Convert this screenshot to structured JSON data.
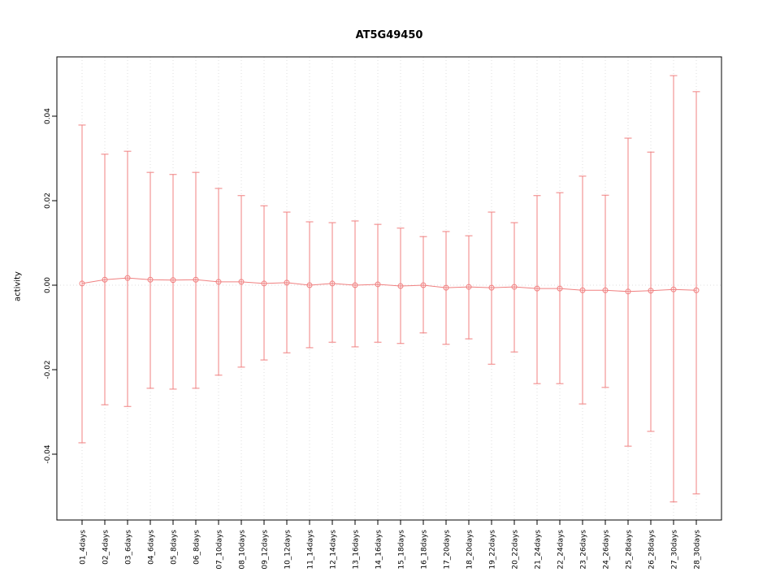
{
  "chart_data": {
    "type": "errorbar-line",
    "title": "AT5G49450",
    "xlabel": "",
    "ylabel": "activity",
    "categories": [
      "01_4days",
      "02_4days",
      "03_6days",
      "04_6days",
      "05_8days",
      "06_8days",
      "07_10days",
      "08_10days",
      "09_12days",
      "10_12days",
      "11_14days",
      "12_14days",
      "13_16days",
      "14_16days",
      "15_18days",
      "16_18days",
      "17_20days",
      "18_20days",
      "19_22days",
      "20_22days",
      "21_24days",
      "22_24days",
      "23_26days",
      "24_26days",
      "25_28days",
      "26_28days",
      "27_30days",
      "28_30days"
    ],
    "series": [
      {
        "name": "activity",
        "centers": [
          0.0004,
          0.0013,
          0.0017,
          0.0013,
          0.0012,
          0.0013,
          0.0008,
          0.0008,
          0.0004,
          0.0006,
          0.0,
          0.0004,
          0.0,
          0.0002,
          -0.0002,
          0.0,
          -0.0006,
          -0.0004,
          -0.0006,
          -0.0004,
          -0.0008,
          -0.0008,
          -0.0012,
          -0.0012,
          -0.0015,
          -0.0013,
          -0.001,
          -0.0012
        ],
        "upper": [
          0.0379,
          0.031,
          0.0317,
          0.0267,
          0.0262,
          0.0267,
          0.0229,
          0.0212,
          0.0188,
          0.0173,
          0.015,
          0.0148,
          0.0152,
          0.0144,
          0.0135,
          0.0115,
          0.0127,
          0.0117,
          0.0173,
          0.0148,
          0.0212,
          0.0219,
          0.0258,
          0.0213,
          0.0348,
          0.0315,
          0.0496,
          0.0458
        ],
        "lower": [
          -0.0373,
          -0.0283,
          -0.0287,
          -0.0244,
          -0.0246,
          -0.0244,
          -0.0213,
          -0.0194,
          -0.0177,
          -0.016,
          -0.0148,
          -0.0135,
          -0.0146,
          -0.0135,
          -0.0138,
          -0.0113,
          -0.014,
          -0.0127,
          -0.0187,
          -0.0158,
          -0.0233,
          -0.0233,
          -0.0281,
          -0.0242,
          -0.0381,
          -0.0346,
          -0.0513,
          -0.0494
        ]
      }
    ],
    "yticks": [
      -0.04,
      -0.02,
      0.0,
      0.02,
      0.04
    ],
    "ytick_labels": [
      "-0.04",
      "-0.02",
      "0.00",
      "0.02",
      "0.04"
    ],
    "ylim": [
      -0.0555,
      0.054
    ],
    "grid": {
      "vertical_gridlines": true,
      "zero_reference_line": true,
      "legend": "none"
    },
    "colors": {
      "series": "#f08080",
      "grid": "#dcdcdc",
      "axis": "#000000",
      "background": "#ffffff"
    }
  }
}
